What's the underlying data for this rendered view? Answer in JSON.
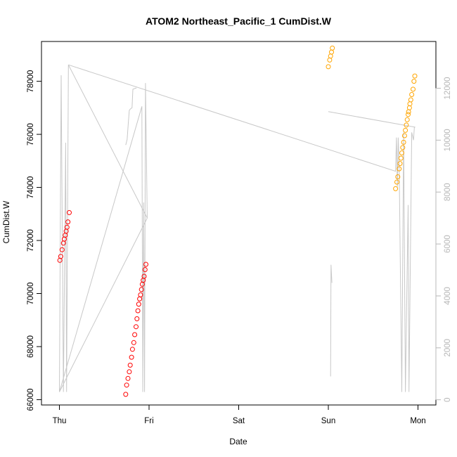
{
  "chart_data": {
    "type": "scatter",
    "title": "ATOM2 Northeast_Pacific_1 CumDist.W",
    "xlabel": "Date",
    "ylabel": "CumDist.W",
    "x_unit": "days",
    "x_ticks": [
      {
        "label": "Thu",
        "value": 0
      },
      {
        "label": "Fri",
        "value": 1
      },
      {
        "label": "Sat",
        "value": 2
      },
      {
        "label": "Sun",
        "value": 3
      },
      {
        "label": "Mon",
        "value": 4
      }
    ],
    "xlim": [
      -0.2,
      4.2
    ],
    "ylim": [
      65800,
      79500
    ],
    "y_ticks": [
      66000,
      68000,
      70000,
      72000,
      74000,
      76000,
      78000
    ],
    "y2lim": [
      -200,
      13800
    ],
    "y2_ticks": [
      0,
      2000,
      4000,
      6000,
      8000,
      10000,
      12000
    ],
    "grid": false,
    "colors": {
      "red": "#ff0000",
      "orange": "#ffa500",
      "gray": "#c8c8c8"
    },
    "series": [
      {
        "color": "#ff0000",
        "marker": "open-circle",
        "axis": "left",
        "points": [
          [
            0.005,
            71250
          ],
          [
            0.015,
            71400
          ],
          [
            0.03,
            71650
          ],
          [
            0.045,
            71900
          ],
          [
            0.055,
            72050
          ],
          [
            0.065,
            72200
          ],
          [
            0.075,
            72350
          ],
          [
            0.085,
            72500
          ],
          [
            0.095,
            72700
          ],
          [
            0.11,
            73050
          ],
          [
            0.74,
            66200
          ],
          [
            0.75,
            66550
          ],
          [
            0.765,
            66800
          ],
          [
            0.78,
            67050
          ],
          [
            0.79,
            67300
          ],
          [
            0.805,
            67600
          ],
          [
            0.815,
            67900
          ],
          [
            0.83,
            68150
          ],
          [
            0.84,
            68450
          ],
          [
            0.855,
            68750
          ],
          [
            0.865,
            69050
          ],
          [
            0.875,
            69350
          ],
          [
            0.885,
            69600
          ],
          [
            0.895,
            69800
          ],
          [
            0.905,
            69950
          ],
          [
            0.915,
            70150
          ],
          [
            0.925,
            70350
          ],
          [
            0.935,
            70500
          ],
          [
            0.945,
            70650
          ],
          [
            0.955,
            70900
          ],
          [
            0.965,
            71100
          ]
        ]
      },
      {
        "color": "#ffa500",
        "marker": "open-circle",
        "axis": "left",
        "points": [
          [
            3.0,
            78550
          ],
          [
            3.015,
            78800
          ],
          [
            3.025,
            78950
          ],
          [
            3.035,
            79100
          ],
          [
            3.045,
            79250
          ],
          [
            3.75,
            73950
          ],
          [
            3.765,
            74200
          ],
          [
            3.775,
            74400
          ],
          [
            3.79,
            74700
          ],
          [
            3.8,
            74900
          ],
          [
            3.81,
            75100
          ],
          [
            3.82,
            75300
          ],
          [
            3.83,
            75500
          ],
          [
            3.84,
            75700
          ],
          [
            3.85,
            75950
          ],
          [
            3.86,
            76150
          ],
          [
            3.87,
            76350
          ],
          [
            3.88,
            76550
          ],
          [
            3.89,
            76750
          ],
          [
            3.895,
            76850
          ],
          [
            3.905,
            77000
          ],
          [
            3.91,
            77150
          ],
          [
            3.92,
            77300
          ],
          [
            3.93,
            77500
          ],
          [
            3.945,
            77700
          ],
          [
            3.955,
            78000
          ],
          [
            3.965,
            78200
          ]
        ]
      },
      {
        "color": "#c8c8c8",
        "marker": "line",
        "axis": "right",
        "points": [
          [
            0.0,
            300
          ],
          [
            0.02,
            12500
          ],
          [
            0.045,
            300
          ],
          [
            0.07,
            9900
          ],
          [
            0.08,
            300
          ],
          [
            0.1,
            12900
          ],
          [
            0.98,
            7000
          ],
          [
            0.96,
            12200
          ],
          [
            0.95,
            300
          ],
          [
            0.94,
            7600
          ],
          [
            0.93,
            300
          ],
          [
            0.92,
            11300
          ],
          [
            0.0,
            300
          ],
          [
            0.98,
            7000
          ]
        ]
      },
      {
        "color": "#c8c8c8",
        "marker": "line",
        "axis": "right",
        "points": [
          [
            0.1,
            12900
          ],
          [
            3.75,
            8800
          ],
          [
            3.76,
            10100
          ],
          [
            3.77,
            8200
          ],
          [
            3.78,
            10100
          ],
          [
            3.79,
            9100
          ],
          [
            3.82,
            300
          ],
          [
            3.84,
            10300
          ],
          [
            3.86,
            300
          ],
          [
            3.89,
            7500
          ],
          [
            3.9,
            300
          ],
          [
            3.93,
            10300
          ],
          [
            3.95,
            10000
          ],
          [
            3.96,
            10500
          ]
        ]
      },
      {
        "color": "#c8c8c8",
        "marker": "line",
        "axis": "right",
        "points": [
          [
            3.0,
            11100
          ],
          [
            3.97,
            10500
          ]
        ]
      },
      {
        "color": "#c8c8c8",
        "marker": "line",
        "axis": "right",
        "points": [
          [
            3.025,
            900
          ],
          [
            3.03,
            5200
          ],
          [
            3.04,
            4500
          ]
        ]
      },
      {
        "color": "#c8c8c8",
        "marker": "line",
        "axis": "left",
        "points": [
          [
            0.74,
            75600
          ],
          [
            0.755,
            75800
          ],
          [
            0.77,
            76500
          ],
          [
            0.78,
            76900
          ],
          [
            0.79,
            76950
          ],
          [
            0.81,
            77000
          ],
          [
            0.82,
            77700
          ],
          [
            0.86,
            77750
          ]
        ]
      }
    ]
  }
}
